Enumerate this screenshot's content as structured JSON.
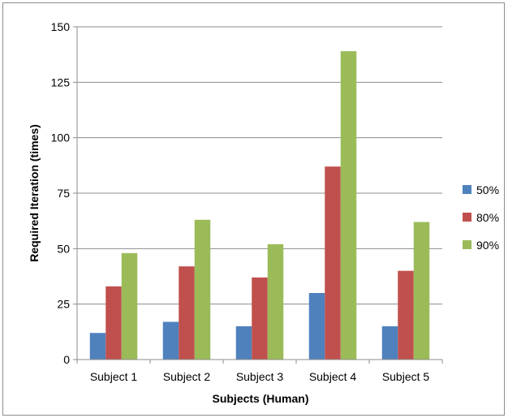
{
  "chart_data": {
    "type": "bar",
    "title": "",
    "xlabel": "Subjects (Human)",
    "ylabel": "Required Iteration (times)",
    "categories": [
      "Subject 1",
      "Subject 2",
      "Subject 3",
      "Subject 4",
      "Subject 5"
    ],
    "series": [
      {
        "name": "50%",
        "color": "#4f81bd",
        "values": [
          12,
          17,
          15,
          30,
          15
        ]
      },
      {
        "name": "80%",
        "color": "#c0504d",
        "values": [
          33,
          42,
          37,
          87,
          40
        ]
      },
      {
        "name": "90%",
        "color": "#9bbb59",
        "values": [
          48,
          63,
          52,
          139,
          62
        ]
      }
    ],
    "ylim": [
      0,
      150
    ],
    "yticks": [
      "0",
      "25",
      "50",
      "75",
      "100",
      "125",
      "150"
    ],
    "grid": true,
    "legend_position": "right"
  }
}
